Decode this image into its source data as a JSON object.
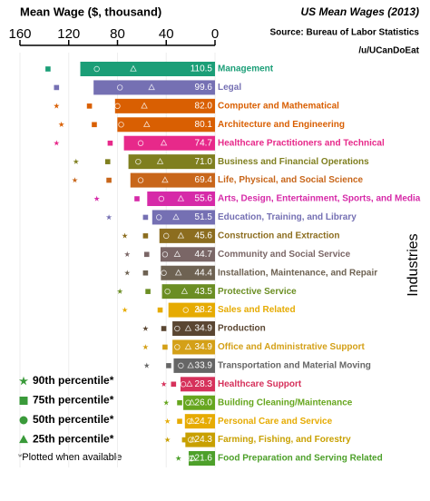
{
  "chart_data": {
    "type": "bar",
    "orientation": "horizontal",
    "x_reversed": true,
    "title": "US Mean Wages (2013)",
    "subtitle": "Source: Bureau of Labor Statistics",
    "credit": "/u/UCanDoEat",
    "xlabel": "Mean Wage ($, thousand)",
    "ylabel": "Industries",
    "footnote": "*Plotted when available",
    "xlim": [
      160,
      0
    ],
    "xticks": [
      160,
      120,
      80,
      40,
      0
    ],
    "grid": true,
    "legend": "lower left",
    "categories": [
      "Management",
      "Legal",
      "Computer and Mathematical",
      "Architecture and Engineering",
      "Healthcare Practitioners and Technical",
      "Business and Financial Operations",
      "Life, Physical, and Social Science",
      "Arts, Design, Entertainment, Sports, and Media",
      "Education, Training, and Library",
      "Construction and Extraction",
      "Community and Social Service",
      "Installation, Maintenance, and Repair",
      "Protective Service",
      "Sales and Related",
      "Production",
      "Office and Administrative Support",
      "Transportation and Material Moving",
      "Healthcare Support",
      "Building Cleaning/Maintenance",
      "Personal Care and Service",
      "Farming, Fishing, and Forestry",
      "Food Preparation and Serving Related"
    ],
    "values": [
      110.5,
      99.6,
      82.0,
      80.1,
      74.7,
      71.0,
      69.4,
      55.6,
      51.5,
      45.6,
      44.7,
      44.4,
      43.5,
      38.2,
      34.9,
      34.9,
      33.9,
      28.3,
      26.0,
      24.7,
      24.3,
      21.6
    ],
    "value_labels": [
      "110.5",
      "99.6",
      "82.0",
      "80.1",
      "74.7",
      "71.0",
      "69.4",
      "55.6",
      "51.5",
      "45.6",
      "44.7",
      "44.4",
      "43.5",
      "38.2",
      "34.9",
      "34.9",
      "33.9",
      "28.3",
      "26.0",
      "24.7",
      "24.3",
      "21.6"
    ],
    "colors": [
      "#1b9e77",
      "#7570b3",
      "#d95f02",
      "#d95f02",
      "#e7298a",
      "#7f7f1f",
      "#c8661a",
      "#d62aa8",
      "#7570b3",
      "#8c6d1f",
      "#7a6666",
      "#6e6252",
      "#6b8e23",
      "#e6ab02",
      "#5a4632",
      "#d4a017",
      "#666666",
      "#d6315b",
      "#66a61e",
      "#e6ab02",
      "#c8a000",
      "#4da02a"
    ],
    "series": [
      {
        "name": "90th percentile*",
        "marker": "star",
        "color": "#3a9a3a",
        "values": [
          null,
          null,
          130,
          126,
          130,
          114,
          115,
          97,
          87,
          74,
          72,
          72,
          78,
          74,
          57,
          57,
          56,
          42,
          40,
          39,
          39,
          30
        ]
      },
      {
        "name": "75th percentile*",
        "marker": "square",
        "color": "#3a9a3a",
        "values": [
          137,
          130,
          103,
          99,
          86,
          88,
          87,
          64,
          57,
          57,
          56,
          57,
          55,
          45,
          42,
          41,
          38,
          34,
          29,
          29,
          25,
          21
        ]
      },
      {
        "name": "50th percentile*",
        "marker": "circle",
        "color": "#3a9a3a",
        "values": [
          97,
          78,
          80,
          77,
          61,
          63,
          61,
          44,
          46,
          40,
          41,
          42,
          39,
          24,
          31,
          31,
          28,
          26,
          22,
          21,
          20,
          19
        ]
      },
      {
        "name": "25th percentile*",
        "marker": "triangle",
        "color": "#3a9a3a",
        "values": [
          67,
          52,
          58,
          56,
          42,
          45,
          41,
          28,
          32,
          28,
          31,
          30,
          25,
          14,
          22,
          22,
          20,
          21,
          19,
          19,
          18,
          18
        ]
      }
    ]
  }
}
